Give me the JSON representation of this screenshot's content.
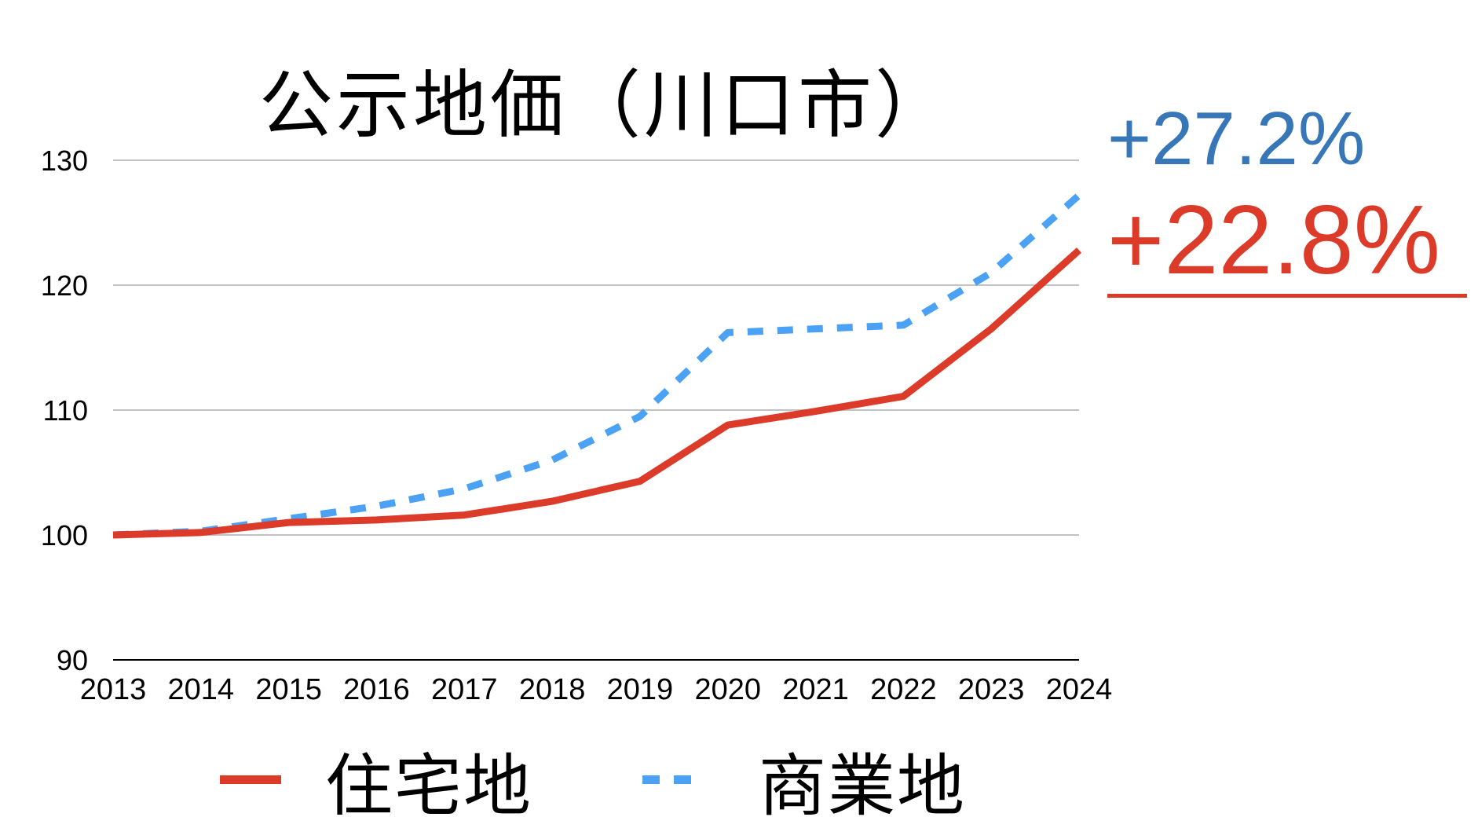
{
  "chart_data": {
    "type": "line",
    "title": "公示地価（川口市）",
    "xlabel": "",
    "ylabel": "",
    "categories": [
      "2013",
      "2014",
      "2015",
      "2016",
      "2017",
      "2018",
      "2019",
      "2020",
      "2021",
      "2022",
      "2023",
      "2024"
    ],
    "series": [
      {
        "name": "住宅地",
        "color": "#db3b28",
        "style": "solid",
        "values": [
          100,
          100.2,
          101.0,
          101.2,
          101.6,
          102.7,
          104.3,
          108.8,
          109.9,
          111.1,
          116.5,
          122.8
        ]
      },
      {
        "name": "商業地",
        "color": "#4ba1f3",
        "style": "dashed",
        "values": [
          100,
          100.3,
          101.3,
          102.3,
          103.7,
          106.0,
          109.5,
          116.2,
          116.5,
          116.8,
          121.0,
          127.2
        ]
      }
    ],
    "ylim": [
      90,
      130
    ],
    "yticks": [
      90,
      100,
      110,
      120,
      130
    ],
    "grid": true,
    "legend_position": "bottom",
    "annotations": [
      {
        "text": "+27.2%",
        "series": "商業地",
        "color": "#3777b8"
      },
      {
        "text": "+22.8%",
        "series": "住宅地",
        "color": "#db3b28",
        "underline": true
      }
    ]
  },
  "title": "公示地価（川口市）",
  "annotations": {
    "commercial": "+27.2%",
    "residential": "+22.8%"
  },
  "legend": {
    "residential": "住宅地",
    "commercial": "商業地"
  }
}
